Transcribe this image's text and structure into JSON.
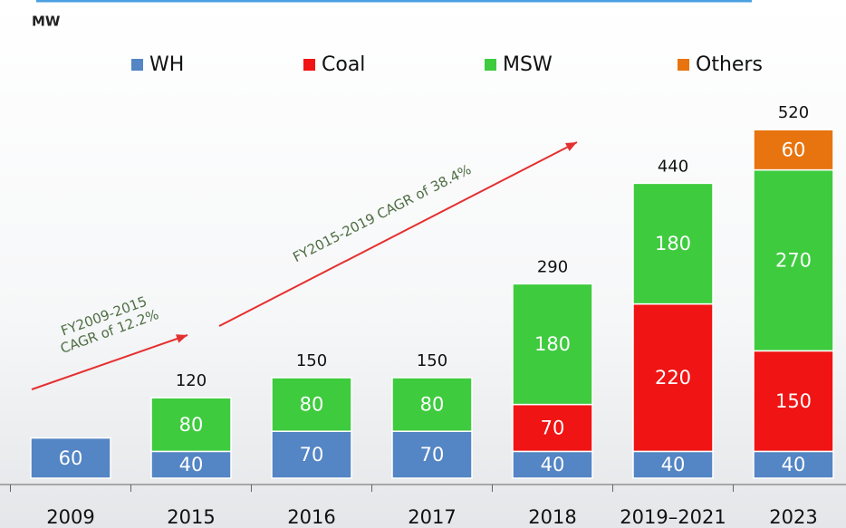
{
  "chart_data": {
    "type": "stacked-bar",
    "unit": "MW",
    "categories": [
      "2009",
      "2015",
      "2016",
      "2017",
      "2018",
      "2019–2021",
      "2023"
    ],
    "series": [
      {
        "name": "WH",
        "color": "#5485c4",
        "values": [
          60,
          40,
          70,
          70,
          40,
          40,
          40
        ]
      },
      {
        "name": "Coal",
        "color": "#f01414",
        "values": [
          null,
          null,
          null,
          null,
          70,
          220,
          150
        ]
      },
      {
        "name": "MSW",
        "color": "#3ecb3e",
        "values": [
          null,
          80,
          80,
          80,
          180,
          180,
          270
        ]
      },
      {
        "name": "Others",
        "color": "#e8740f",
        "values": [
          null,
          null,
          null,
          null,
          null,
          null,
          60
        ]
      }
    ],
    "totals": [
      null,
      120,
      150,
      150,
      290,
      440,
      520
    ],
    "annotations": [
      [
        "FY2009-2015",
        "CAGR of 12.2%"
      ],
      [
        "FY2015-2019 CAGR of 38.4%"
      ]
    ],
    "arrow_color": "#e53030"
  }
}
